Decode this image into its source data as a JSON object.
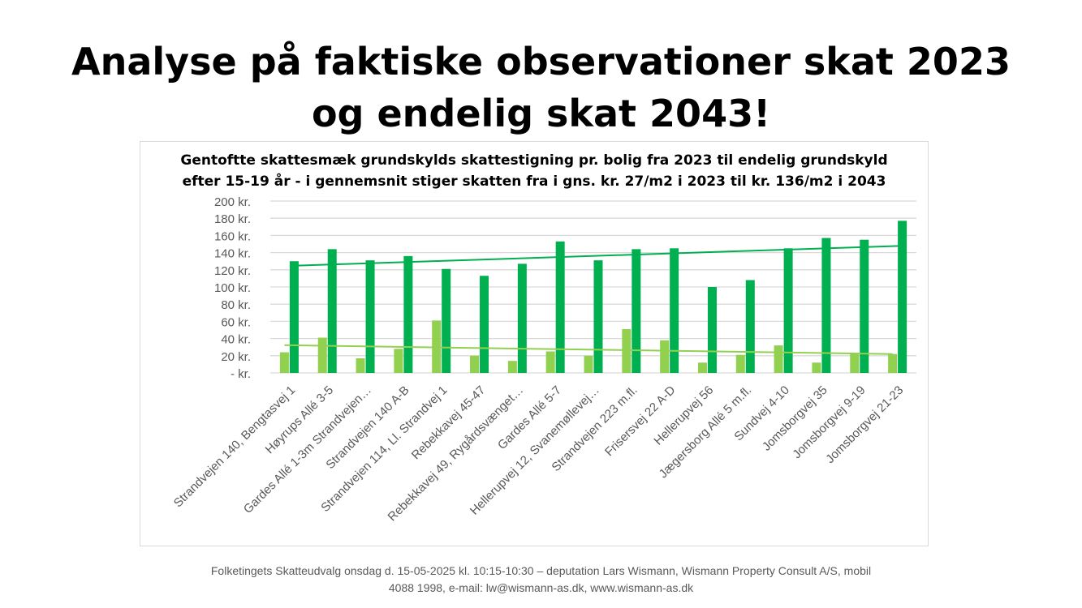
{
  "slide": {
    "title_line1": "Analyse på faktiske observationer skat 2023",
    "title_line2": "og endelig skat 2043!",
    "footer_line1": "Folketingets Skatteudvalg onsdag d. 15-05-2025 kl. 10:15-10:30 –  deputation Lars Wismann, Wismann Property Consult A/S, mobil",
    "footer_line2": "4088 1998, e-mail: lw@wismann-as.dk, www.wismann-as.dk"
  },
  "colors": {
    "series_2023": "#92d050",
    "series_2043": "#00b050",
    "trend_2023": "#92d050",
    "trend_2043": "#00b050",
    "gridline": "#d9d9d9",
    "axis_text": "#595959"
  },
  "chart_data": {
    "type": "bar",
    "title_line1": "Gentoftte skattesmæk grundskylds skattestigning pr. bolig  fra 2023 til endelig grundskyld",
    "title_line2": "efter 15-19 år  - i gennemsnit stiger skatten fra i gns. kr. 27/m2  i 2023 til kr. 136/m2 i 2043",
    "categories": [
      "Strandvejen 140, Bengtasvej 1",
      "Høyrups Allé 3-5",
      "Gardes Allé 1-3m Strandvejen…",
      "Strandvejen 140 A-B",
      "Strandvejen 114, Ll. Strandvej 1",
      "Rebekkavej 45-47",
      "Rebekkavej 49, Rygårdsvænget…",
      "Gardes Allé 5-7",
      "Hellerupvej 12, Svanemøllevej…",
      "Strandvejen 223 m.fl.",
      "Frisersvej 22 A-D",
      "Hellerupvej 56",
      "Jægersborg Allé 5 m.fl.",
      "Sundvej 4-10",
      "Jomsborgvej 35",
      "Jomsborgvej 9-19",
      "Jomsborgvej 21-23"
    ],
    "series": [
      {
        "values": [
          24,
          41,
          17,
          28,
          61,
          20,
          14,
          25,
          20,
          51,
          38,
          12,
          21,
          32,
          12,
          23,
          22
        ],
        "trendline": true
      },
      {
        "values": [
          130,
          144,
          131,
          136,
          121,
          113,
          127,
          153,
          131,
          144,
          145,
          100,
          108,
          145,
          157,
          155,
          177
        ],
        "trendline": true
      }
    ],
    "yticks": [
      "- kr.",
      "20 kr.",
      "40 kr.",
      "60 kr.",
      "80 kr.",
      "100 kr.",
      "120 kr.",
      "140 kr.",
      "160 kr.",
      "180 kr.",
      "200 kr."
    ],
    "ylim": [
      0,
      200
    ],
    "ystep": 20,
    "grid": true,
    "legend": "none"
  }
}
